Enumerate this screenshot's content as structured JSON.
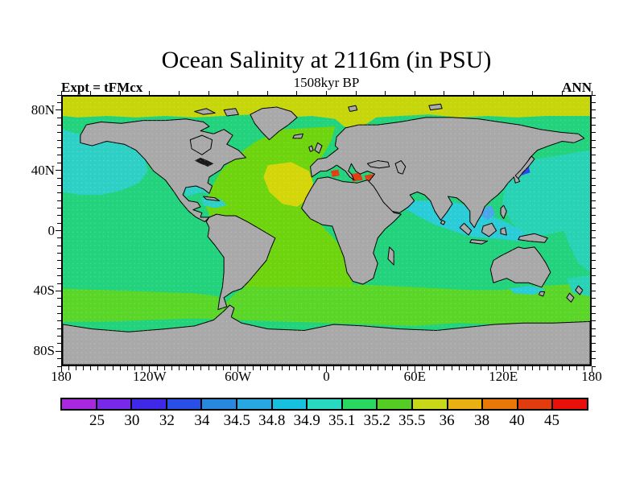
{
  "header": {
    "title": "Ocean Salinity at 2116m (in PSU)",
    "subtitle": "1508kyr BP",
    "experiment": "Expt = tFMcx",
    "season": "ANN"
  },
  "chart_data": {
    "type": "heatmap",
    "title": "Ocean Salinity at 2116m (in PSU)",
    "subtitle": "1508kyr BP",
    "experiment": "Expt = tFMcx",
    "season": "ANN",
    "units": "PSU",
    "projection": "equirectangular world map, lon -180..180, lat -90..90",
    "x_axis": {
      "ticks": [
        "180",
        "120W",
        "60W",
        "0",
        "60E",
        "120E",
        "180"
      ]
    },
    "y_axis": {
      "ticks": [
        "80N",
        "40N",
        "0",
        "40S",
        "80S"
      ]
    },
    "colorbar": {
      "boundaries": [
        25,
        30,
        32,
        34,
        34.5,
        34.8,
        34.9,
        35.1,
        35.2,
        35.5,
        36,
        38,
        40,
        45
      ],
      "labels": [
        "25",
        "30",
        "32",
        "34",
        "34.5",
        "34.8",
        "34.9",
        "35.1",
        "35.2",
        "35.5",
        "36",
        "38",
        "40",
        "45"
      ],
      "colors": [
        "#a828e0",
        "#7828e8",
        "#4028e8",
        "#2850e8",
        "#2888e0",
        "#28a8e0",
        "#18c0e0",
        "#28d8c0",
        "#28d860",
        "#54cc24",
        "#c8d818",
        "#e8b010",
        "#e87808",
        "#e03c10",
        "#e81008"
      ]
    },
    "regions": [
      {
        "area": "most mid- and low-latitude ocean (Pacific, central Indian, SW Atlantic)",
        "salinity_psu": "35.1-35.2"
      },
      {
        "area": "North Pacific, West Pacific, Caribbean / Gulf of Mexico",
        "salinity_psu": "34.9-35.1"
      },
      {
        "area": "northern Indian Ocean and seas around Indonesia",
        "salinity_psu": "34.8-34.9"
      },
      {
        "area": "Atlantic basin and circumpolar Southern Ocean band",
        "salinity_psu": "35.2-35.5"
      },
      {
        "area": "subtropical North Atlantic patch and Arctic margin band",
        "salinity_psu": "35.5-36"
      },
      {
        "area": "Mediterranean Sea spots",
        "salinity_psu": "40-45+"
      },
      {
        "area": "Sea of Japan spot",
        "salinity_psu": "32-34"
      },
      {
        "area": "South China Sea shelf patches",
        "salinity_psu": "34-34.5"
      },
      {
        "area": "continents, Arctic shelves, Antarctica",
        "salinity_psu": "no data (gray)"
      }
    ],
    "palette": {
      "land": "#a9a9a9",
      "coastline": "#000000",
      "ocean_base": "#22d27c",
      "arctic_band": "#c6d60a",
      "atlantic_lime": "#6ed40e",
      "subtropical_yellow": "#d4d60a",
      "southern_band": "#5ad628",
      "north_pacific_teal": "#2ed0c6",
      "west_pacific_turquoise": "#28d2b4",
      "north_indian_cyan": "#2accd8",
      "shelf_light_blue": "#4aa6ea",
      "japan_sea_blue": "#2848e8",
      "mediterranean_red": "#e23c10",
      "lakes_black": "#1a1a1a"
    }
  }
}
